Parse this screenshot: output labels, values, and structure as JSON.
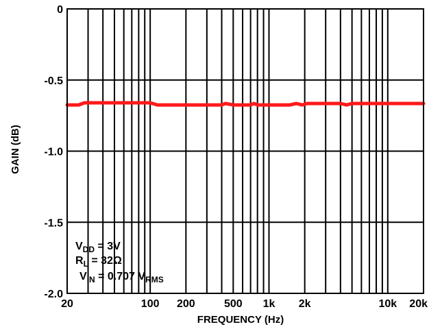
{
  "chart_data": {
    "type": "line",
    "title": "",
    "xlabel": "FREQUENCY (Hz)",
    "ylabel": "GAIN (dB)",
    "x_scale": "log",
    "xlim": [
      20,
      20000
    ],
    "ylim": [
      -2.0,
      0
    ],
    "grid": true,
    "x_tick_labels": [
      {
        "value": 20,
        "label": "20"
      },
      {
        "value": 100,
        "label": "100"
      },
      {
        "value": 200,
        "label": "200"
      },
      {
        "value": 500,
        "label": "500"
      },
      {
        "value": 1000,
        "label": "1k"
      },
      {
        "value": 2000,
        "label": "2k"
      },
      {
        "value": 10000,
        "label": "10k"
      },
      {
        "value": 20000,
        "label": "20k"
      }
    ],
    "y_tick_labels": [
      {
        "value": 0,
        "label": "0"
      },
      {
        "value": -0.5,
        "label": "-0.5"
      },
      {
        "value": -1.0,
        "label": "-1.0"
      },
      {
        "value": -1.5,
        "label": "-1.5"
      },
      {
        "value": -2.0,
        "label": "-2.0"
      }
    ],
    "series": [
      {
        "color": "#ff1a1a",
        "x": [
          20,
          25,
          28,
          30,
          40,
          50,
          70,
          100,
          115,
          130,
          200,
          300,
          400,
          430,
          500,
          600,
          700,
          750,
          800,
          900,
          1000,
          1200,
          1500,
          1700,
          1900,
          2100,
          2500,
          3000,
          4000,
          4500,
          5000,
          6000,
          7000,
          8000,
          10000,
          12000,
          15000,
          20000
        ],
        "y": [
          -0.675,
          -0.675,
          -0.66,
          -0.66,
          -0.66,
          -0.66,
          -0.66,
          -0.66,
          -0.675,
          -0.675,
          -0.675,
          -0.675,
          -0.675,
          -0.665,
          -0.675,
          -0.675,
          -0.675,
          -0.665,
          -0.675,
          -0.675,
          -0.675,
          -0.675,
          -0.675,
          -0.665,
          -0.675,
          -0.665,
          -0.665,
          -0.665,
          -0.665,
          -0.675,
          -0.665,
          -0.665,
          -0.665,
          -0.665,
          -0.665,
          -0.665,
          -0.665,
          -0.665
        ]
      }
    ],
    "annotations": [
      {
        "main": "V",
        "sub": "DD",
        "rest": " = 3V"
      },
      {
        "main": "R",
        "sub": "L",
        "rest": " = 32Ω"
      },
      {
        "main": "V",
        "sub": "IN",
        "rest": " = 0.707 V",
        "sub2": "RMS"
      }
    ]
  }
}
